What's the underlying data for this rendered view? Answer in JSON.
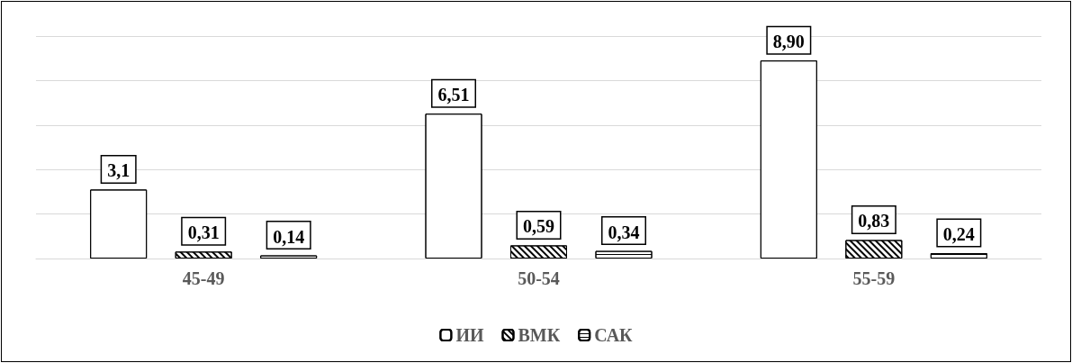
{
  "chart_data": {
    "type": "bar",
    "categories": [
      "45-49",
      "50-54",
      "55-59"
    ],
    "series": [
      {
        "name": "ИИ",
        "color": "#ffffff",
        "values": [
          3.1,
          6.51,
          8.9
        ],
        "value_labels": [
          "3,1",
          "6,51",
          "8,90"
        ]
      },
      {
        "name": "ВМК",
        "color": "#ffffff",
        "values": [
          0.31,
          0.59,
          0.83
        ],
        "value_labels": [
          "0,31",
          "0,59",
          "0,83"
        ]
      },
      {
        "name": "САК",
        "color": "#ffffff",
        "values": [
          0.14,
          0.34,
          0.24
        ],
        "value_labels": [
          "0,14",
          "0,34",
          "0,24"
        ]
      }
    ],
    "ylim": [
      0,
      10
    ],
    "yticks": [
      {
        "value": 0,
        "label": null
      },
      {
        "value": 2,
        "label": null
      },
      {
        "value": 4,
        "label": null
      },
      {
        "value": 6,
        "label": null
      },
      {
        "value": 8,
        "label": null
      },
      {
        "value": 10,
        "label": null
      }
    ],
    "grid": "y",
    "legend": "bottom",
    "tick_labels": "x"
  }
}
